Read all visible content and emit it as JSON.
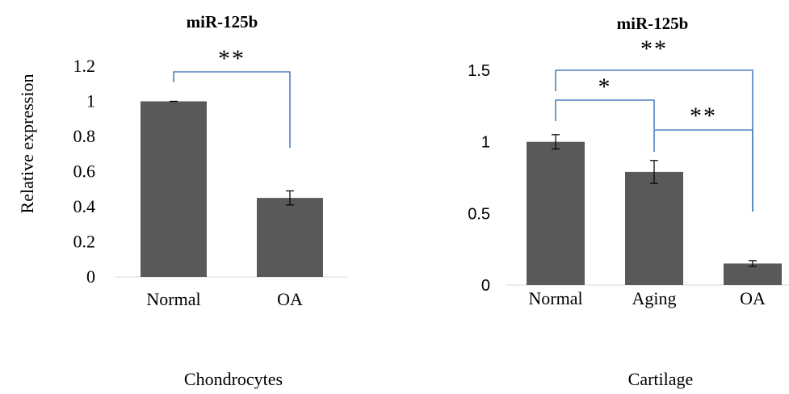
{
  "chart_data": [
    {
      "type": "bar",
      "title": "miR-125b",
      "xlabel": "Chondrocytes",
      "ylabel": "Relative expression",
      "categories": [
        "Normal",
        "OA"
      ],
      "values": [
        1.0,
        0.45
      ],
      "error": [
        0.0,
        0.04
      ],
      "ylim": [
        0,
        1.2
      ],
      "yticks": [
        "0",
        "0.2",
        "0.4",
        "0.6",
        "0.8",
        "1",
        "1.2"
      ],
      "significance": [
        {
          "from": 0,
          "to": 1,
          "label": "**"
        }
      ],
      "colors": {
        "bar": "#595959",
        "bracket": "#4f81bd"
      }
    },
    {
      "type": "bar",
      "title": "miR-125b",
      "xlabel": "Cartilage",
      "ylabel": "",
      "categories": [
        "Normal",
        "Aging",
        "OA"
      ],
      "values": [
        1.0,
        0.79,
        0.15
      ],
      "error": [
        0.05,
        0.08,
        0.02
      ],
      "ylim": [
        0,
        1.5
      ],
      "yticks": [
        "0",
        "0.5",
        "1",
        "1.5"
      ],
      "significance": [
        {
          "from": 0,
          "to": 1,
          "label": "*"
        },
        {
          "from": 1,
          "to": 2,
          "label": "**"
        },
        {
          "from": 0,
          "to": 2,
          "label": "**"
        }
      ],
      "colors": {
        "bar": "#595959",
        "bracket": "#4f81bd"
      }
    }
  ]
}
